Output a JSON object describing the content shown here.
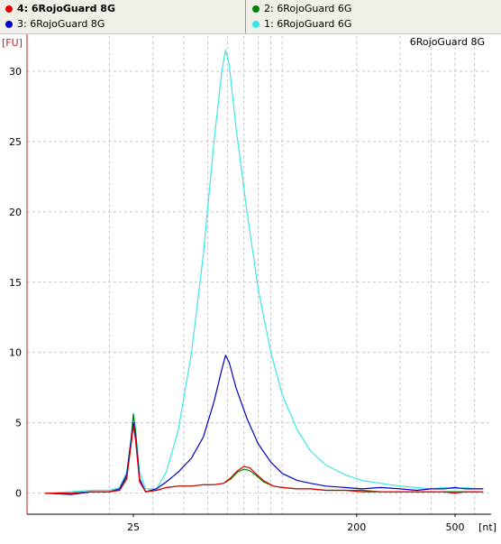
{
  "legend": {
    "items": [
      {
        "label": "4: 6RojoGuard 8G",
        "color": "#e00000",
        "selected": true
      },
      {
        "label": "3: 6RojoGuard 8G",
        "color": "#0000c8",
        "selected": false
      },
      {
        "label": "2: 6RojoGuard 6G",
        "color": "#008000",
        "selected": false
      },
      {
        "label": "1: 6RojoGuard 6G",
        "color": "#3ce6e6",
        "selected": false
      }
    ]
  },
  "chart_data": {
    "type": "line",
    "title": "6RojoGuard 8G",
    "ylabel": "[FU]",
    "xlabel": "[nt]",
    "ylim": [
      -1.5,
      32.5
    ],
    "yticks": [
      0,
      5,
      10,
      15,
      20,
      25,
      30
    ],
    "xscale": "log",
    "xticks": [
      25,
      200,
      500
    ],
    "grid": true,
    "series": [
      {
        "name": "1: 6RojoGuard 6G",
        "color": "#3ce6e6",
        "points": [
          [
            11,
            0.0
          ],
          [
            14,
            0.1
          ],
          [
            17,
            0.2
          ],
          [
            20,
            0.2
          ],
          [
            22,
            0.4
          ],
          [
            23.5,
            1.5
          ],
          [
            24.5,
            4.0
          ],
          [
            25,
            5.7
          ],
          [
            25.5,
            4.6
          ],
          [
            26.5,
            1.5
          ],
          [
            28,
            0.3
          ],
          [
            31,
            0.3
          ],
          [
            34,
            1.5
          ],
          [
            38,
            4.5
          ],
          [
            43,
            10.0
          ],
          [
            48,
            17.0
          ],
          [
            53,
            25.0
          ],
          [
            57,
            30.0
          ],
          [
            59,
            31.5
          ],
          [
            61,
            30.5
          ],
          [
            65,
            26.0
          ],
          [
            72,
            20.0
          ],
          [
            80,
            14.5
          ],
          [
            90,
            10.0
          ],
          [
            100,
            7.0
          ],
          [
            115,
            4.5
          ],
          [
            130,
            3.0
          ],
          [
            150,
            2.0
          ],
          [
            180,
            1.3
          ],
          [
            210,
            0.9
          ],
          [
            250,
            0.7
          ],
          [
            300,
            0.5
          ],
          [
            350,
            0.4
          ],
          [
            400,
            0.3
          ],
          [
            450,
            0.4
          ],
          [
            500,
            0.3
          ],
          [
            550,
            0.4
          ],
          [
            600,
            0.3
          ],
          [
            650,
            0.3
          ]
        ]
      },
      {
        "name": "2: 6RojoGuard 6G",
        "color": "#008000",
        "points": [
          [
            11,
            0.0
          ],
          [
            14,
            0.0
          ],
          [
            17,
            0.1
          ],
          [
            20,
            0.1
          ],
          [
            22,
            0.2
          ],
          [
            23.5,
            1.2
          ],
          [
            24.5,
            3.8
          ],
          [
            25,
            5.6
          ],
          [
            25.5,
            4.4
          ],
          [
            26.5,
            1.0
          ],
          [
            28,
            0.1
          ],
          [
            31,
            0.2
          ],
          [
            34,
            0.4
          ],
          [
            38,
            0.5
          ],
          [
            43,
            0.5
          ],
          [
            48,
            0.6
          ],
          [
            53,
            0.6
          ],
          [
            58,
            0.7
          ],
          [
            62,
            1.0
          ],
          [
            66,
            1.5
          ],
          [
            70,
            1.7
          ],
          [
            74,
            1.6
          ],
          [
            78,
            1.3
          ],
          [
            84,
            0.8
          ],
          [
            92,
            0.5
          ],
          [
            100,
            0.4
          ],
          [
            115,
            0.3
          ],
          [
            130,
            0.3
          ],
          [
            150,
            0.2
          ],
          [
            180,
            0.2
          ],
          [
            210,
            0.2
          ],
          [
            250,
            0.1
          ],
          [
            300,
            0.1
          ],
          [
            350,
            0.1
          ],
          [
            400,
            0.1
          ],
          [
            450,
            0.1
          ],
          [
            500,
            0.1
          ],
          [
            550,
            0.1
          ],
          [
            600,
            0.1
          ],
          [
            650,
            0.1
          ]
        ]
      },
      {
        "name": "3: 6RojoGuard 8G",
        "color": "#0000c8",
        "points": [
          [
            11,
            0.0
          ],
          [
            14,
            -0.1
          ],
          [
            17,
            0.1
          ],
          [
            20,
            0.1
          ],
          [
            22,
            0.3
          ],
          [
            23.5,
            1.3
          ],
          [
            24.5,
            3.8
          ],
          [
            25,
            5.0
          ],
          [
            25.5,
            4.0
          ],
          [
            26.5,
            1.0
          ],
          [
            28,
            0.1
          ],
          [
            31,
            0.3
          ],
          [
            34,
            0.8
          ],
          [
            38,
            1.5
          ],
          [
            43,
            2.5
          ],
          [
            48,
            4.0
          ],
          [
            53,
            6.5
          ],
          [
            57,
            8.8
          ],
          [
            59,
            9.8
          ],
          [
            61,
            9.3
          ],
          [
            65,
            7.5
          ],
          [
            72,
            5.3
          ],
          [
            80,
            3.5
          ],
          [
            90,
            2.2
          ],
          [
            100,
            1.4
          ],
          [
            115,
            0.9
          ],
          [
            130,
            0.7
          ],
          [
            150,
            0.5
          ],
          [
            180,
            0.4
          ],
          [
            210,
            0.3
          ],
          [
            250,
            0.4
          ],
          [
            300,
            0.3
          ],
          [
            350,
            0.2
          ],
          [
            400,
            0.3
          ],
          [
            450,
            0.3
          ],
          [
            500,
            0.4
          ],
          [
            550,
            0.3
          ],
          [
            600,
            0.3
          ],
          [
            650,
            0.3
          ]
        ]
      },
      {
        "name": "4: 6RojoGuard 8G",
        "color": "#e00000",
        "points": [
          [
            11,
            0.0
          ],
          [
            14,
            0.0
          ],
          [
            17,
            0.1
          ],
          [
            20,
            0.1
          ],
          [
            22,
            0.2
          ],
          [
            23.5,
            1.0
          ],
          [
            24.5,
            3.5
          ],
          [
            25,
            4.8
          ],
          [
            25.5,
            3.8
          ],
          [
            26.5,
            0.8
          ],
          [
            28,
            0.1
          ],
          [
            31,
            0.2
          ],
          [
            34,
            0.4
          ],
          [
            38,
            0.5
          ],
          [
            43,
            0.5
          ],
          [
            48,
            0.6
          ],
          [
            53,
            0.6
          ],
          [
            58,
            0.7
          ],
          [
            62,
            1.1
          ],
          [
            66,
            1.6
          ],
          [
            70,
            1.9
          ],
          [
            74,
            1.8
          ],
          [
            78,
            1.4
          ],
          [
            84,
            0.9
          ],
          [
            92,
            0.5
          ],
          [
            100,
            0.4
          ],
          [
            115,
            0.3
          ],
          [
            130,
            0.3
          ],
          [
            150,
            0.2
          ],
          [
            180,
            0.2
          ],
          [
            210,
            0.1
          ],
          [
            250,
            0.1
          ],
          [
            300,
            0.1
          ],
          [
            350,
            0.1
          ],
          [
            400,
            0.1
          ],
          [
            450,
            0.1
          ],
          [
            500,
            0.0
          ],
          [
            550,
            0.1
          ],
          [
            600,
            0.1
          ],
          [
            650,
            0.1
          ]
        ]
      }
    ]
  }
}
